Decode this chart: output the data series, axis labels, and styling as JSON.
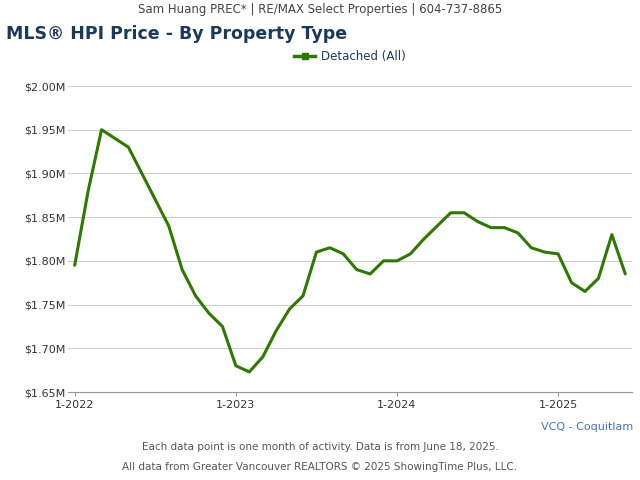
{
  "header_text": "Sam Huang PREC* | RE/MAX Select Properties | 604-737-8865",
  "title": "MLS® HPI Price - By Property Type",
  "legend_label": "Detached (All)",
  "line_color": "#2d7a00",
  "line_width": 2.2,
  "vcq_label": "VCQ - Coquitlam",
  "vcq_color": "#4472c4",
  "footnote1": "Each data point is one month of activity. Data is from June 18, 2025.",
  "footnote2": "All data from Greater Vancouver REALTORS © 2025 ShowingTime Plus, LLC.",
  "background_color": "#ffffff",
  "header_bg_color": "#e0e0e0",
  "ylim_min": 1650000,
  "ylim_max": 2000000,
  "ytick_values": [
    1650000,
    1700000,
    1750000,
    1800000,
    1850000,
    1900000,
    1950000,
    2000000
  ],
  "ytick_labels": [
    "$1.65M",
    "$1.70M",
    "$1.75M",
    "$1.80M",
    "$1.85M",
    "$1.90M",
    "$1.95M",
    "$2.00M"
  ],
  "xtick_labels": [
    "1-2022",
    "1-2023",
    "1-2024",
    "1-2025"
  ],
  "xtick_positions": [
    0,
    12,
    24,
    36
  ],
  "values": [
    1795000,
    1880000,
    1950000,
    1940000,
    1930000,
    1900000,
    1870000,
    1840000,
    1790000,
    1760000,
    1740000,
    1725000,
    1680000,
    1673000,
    1690000,
    1720000,
    1745000,
    1760000,
    1810000,
    1815000,
    1808000,
    1790000,
    1785000,
    1800000,
    1800000,
    1808000,
    1825000,
    1840000,
    1855000,
    1855000,
    1845000,
    1838000,
    1838000,
    1832000,
    1815000,
    1810000,
    1808000,
    1775000,
    1765000,
    1780000,
    1830000,
    1785000
  ]
}
